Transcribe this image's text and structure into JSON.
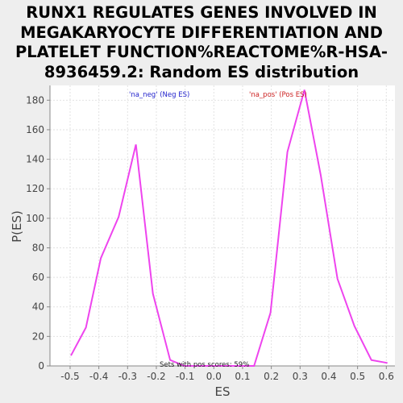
{
  "chart_data": {
    "type": "line",
    "title_lines": [
      "RUNX1 REGULATES GENES INVOLVED IN",
      "MEGAKARYOCYTE DIFFERENTIATION AND",
      "PLATELET FUNCTION%REACTOME%R-HSA-",
      "8936459.2: Random ES distribution"
    ],
    "xlabel": "ES",
    "ylabel": "P(ES)",
    "xlim": [
      -0.57,
      0.63
    ],
    "ylim": [
      0,
      190
    ],
    "x_ticks": [
      -0.5,
      -0.4,
      -0.3,
      -0.2,
      -0.1,
      0.0,
      0.1,
      0.2,
      0.3,
      0.4,
      0.5,
      0.6
    ],
    "x_tick_labels": [
      "-0.5",
      "-0.4",
      "-0.3",
      "-0.2",
      "-0.1",
      "0.0",
      "0.1",
      "0.2",
      "0.3",
      "0.4",
      "0.5",
      "0.6"
    ],
    "y_ticks": [
      0,
      20,
      40,
      60,
      80,
      100,
      120,
      140,
      160,
      180
    ],
    "y_tick_labels": [
      "0",
      "20",
      "40",
      "60",
      "80",
      "100",
      "120",
      "140",
      "160",
      "180"
    ],
    "grid": true,
    "series": [
      {
        "name": "",
        "color": "#ee44ee",
        "x": [
          -0.497,
          -0.445,
          -0.393,
          -0.331,
          -0.271,
          -0.212,
          -0.152,
          -0.102,
          0.03,
          0.14,
          0.197,
          0.256,
          0.315,
          0.372,
          0.43,
          0.489,
          0.548,
          0.604
        ],
        "y": [
          7,
          26,
          73,
          101,
          150,
          49,
          4,
          0,
          0,
          0,
          36,
          145,
          187,
          129,
          59,
          27,
          4,
          2
        ]
      }
    ],
    "legend": [
      {
        "label": "'na_neg' (Neg ES)",
        "color": "#2222cc"
      },
      {
        "label": "'na_pos' (Pos ES)",
        "color": "#cc2222"
      }
    ],
    "annotation": "Sets with pos scores: 59%"
  }
}
